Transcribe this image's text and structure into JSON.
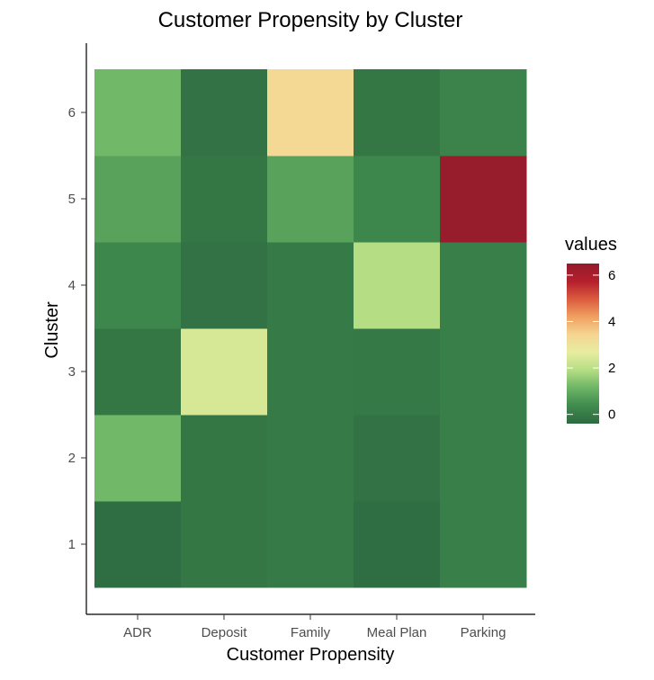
{
  "chart_data": {
    "type": "heatmap",
    "title": "Customer Propensity by Cluster",
    "xlabel": "Customer Propensity",
    "ylabel": "Cluster",
    "x_categories": [
      "ADR",
      "Deposit",
      "Family",
      "Meal Plan",
      "Parking"
    ],
    "y_categories": [
      "1",
      "2",
      "3",
      "4",
      "5",
      "6"
    ],
    "values": [
      {
        "cluster": "1",
        "row": [
          -0.3,
          -0.1,
          0.0,
          -0.3,
          0.1
        ]
      },
      {
        "cluster": "2",
        "row": [
          1.2,
          -0.1,
          0.0,
          -0.2,
          0.1
        ]
      },
      {
        "cluster": "3",
        "row": [
          -0.1,
          2.4,
          0.0,
          -0.05,
          0.1
        ]
      },
      {
        "cluster": "4",
        "row": [
          0.3,
          -0.2,
          0.0,
          1.9,
          0.1
        ]
      },
      {
        "cluster": "5",
        "row": [
          0.8,
          -0.1,
          0.8,
          0.3,
          6.4
        ]
      },
      {
        "cluster": "6",
        "row": [
          1.2,
          -0.2,
          3.3,
          -0.1,
          0.2
        ]
      }
    ],
    "legend": {
      "title": "values",
      "ticks": [
        "6",
        "4",
        "2",
        "0"
      ],
      "tick_values": [
        6,
        4,
        2,
        0
      ],
      "range": [
        -0.4,
        6.5
      ],
      "placement": "right"
    },
    "colorscale": [
      "#2d6a40",
      "#3f8a4e",
      "#6cb466",
      "#b5dd84",
      "#e7eda0",
      "#f5d592",
      "#f0a161",
      "#dc5b3f",
      "#b51f2c",
      "#921b2c"
    ],
    "grid": false
  }
}
